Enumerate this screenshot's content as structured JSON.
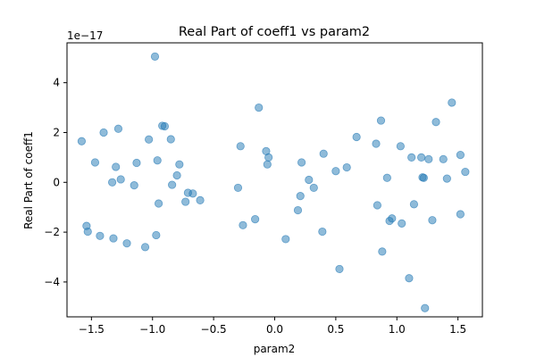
{
  "chart_data": {
    "type": "scatter",
    "title": "Real Part of coeff1 vs param2",
    "xlabel": "param2",
    "ylabel": "Real Part of coeff1",
    "y_offset_label": "1e−17",
    "xlim": [
      -1.7,
      1.7
    ],
    "ylim": [
      -5.4,
      5.6
    ],
    "xticks": [
      -1.5,
      -1.0,
      -0.5,
      0.0,
      0.5,
      1.0,
      1.5
    ],
    "xtick_labels": [
      "−1.5",
      "−1.0",
      "−0.5",
      "0.0",
      "0.5",
      "1.0",
      "1.5"
    ],
    "yticks": [
      -4,
      -2,
      0,
      2,
      4
    ],
    "ytick_labels": [
      "−4",
      "−2",
      "0",
      "2",
      "4"
    ],
    "grid": false,
    "marker_color": "#1f77b4",
    "marker_alpha": 0.5,
    "points": [
      {
        "x": -1.58,
        "y": 1.65
      },
      {
        "x": -1.54,
        "y": -1.75
      },
      {
        "x": -1.53,
        "y": -1.98
      },
      {
        "x": -1.47,
        "y": 0.8
      },
      {
        "x": -1.43,
        "y": -2.15
      },
      {
        "x": -1.4,
        "y": 2.0
      },
      {
        "x": -1.33,
        "y": 0.0
      },
      {
        "x": -1.32,
        "y": -2.25
      },
      {
        "x": -1.3,
        "y": 0.62
      },
      {
        "x": -1.28,
        "y": 2.15
      },
      {
        "x": -1.26,
        "y": 0.12
      },
      {
        "x": -1.21,
        "y": -2.45
      },
      {
        "x": -1.15,
        "y": -0.12
      },
      {
        "x": -1.13,
        "y": 0.78
      },
      {
        "x": -1.06,
        "y": -2.6
      },
      {
        "x": -1.03,
        "y": 1.72
      },
      {
        "x": -0.98,
        "y": 5.05
      },
      {
        "x": -0.97,
        "y": -2.12
      },
      {
        "x": -0.96,
        "y": 0.88
      },
      {
        "x": -0.95,
        "y": -0.85
      },
      {
        "x": -0.92,
        "y": 2.27
      },
      {
        "x": -0.9,
        "y": 2.25
      },
      {
        "x": -0.85,
        "y": 1.73
      },
      {
        "x": -0.84,
        "y": -0.1
      },
      {
        "x": -0.8,
        "y": 0.28
      },
      {
        "x": -0.78,
        "y": 0.72
      },
      {
        "x": -0.73,
        "y": -0.78
      },
      {
        "x": -0.71,
        "y": -0.42
      },
      {
        "x": -0.67,
        "y": -0.45
      },
      {
        "x": -0.61,
        "y": -0.72
      },
      {
        "x": -0.3,
        "y": -0.22
      },
      {
        "x": -0.28,
        "y": 1.45
      },
      {
        "x": -0.26,
        "y": -1.72
      },
      {
        "x": -0.16,
        "y": -1.48
      },
      {
        "x": -0.13,
        "y": 3.0
      },
      {
        "x": -0.07,
        "y": 1.25
      },
      {
        "x": -0.06,
        "y": 0.72
      },
      {
        "x": -0.05,
        "y": 1.0
      },
      {
        "x": 0.09,
        "y": -2.28
      },
      {
        "x": 0.19,
        "y": -1.12
      },
      {
        "x": 0.21,
        "y": -0.55
      },
      {
        "x": 0.22,
        "y": 0.8
      },
      {
        "x": 0.28,
        "y": 0.1
      },
      {
        "x": 0.32,
        "y": -0.22
      },
      {
        "x": 0.39,
        "y": -1.98
      },
      {
        "x": 0.4,
        "y": 1.15
      },
      {
        "x": 0.5,
        "y": 0.45
      },
      {
        "x": 0.53,
        "y": -3.48
      },
      {
        "x": 0.59,
        "y": 0.6
      },
      {
        "x": 0.67,
        "y": 1.82
      },
      {
        "x": 0.83,
        "y": 1.55
      },
      {
        "x": 0.84,
        "y": -0.92
      },
      {
        "x": 0.87,
        "y": 2.48
      },
      {
        "x": 0.88,
        "y": -2.78
      },
      {
        "x": 0.92,
        "y": 0.18
      },
      {
        "x": 0.94,
        "y": -1.55
      },
      {
        "x": 0.96,
        "y": -1.45
      },
      {
        "x": 1.03,
        "y": 1.45
      },
      {
        "x": 1.04,
        "y": -1.65
      },
      {
        "x": 1.1,
        "y": -3.85
      },
      {
        "x": 1.12,
        "y": 1.0
      },
      {
        "x": 1.14,
        "y": -0.88
      },
      {
        "x": 1.2,
        "y": 1.0
      },
      {
        "x": 1.21,
        "y": 0.2
      },
      {
        "x": 1.22,
        "y": 0.18
      },
      {
        "x": 1.23,
        "y": -5.05
      },
      {
        "x": 1.26,
        "y": 0.93
      },
      {
        "x": 1.29,
        "y": -1.52
      },
      {
        "x": 1.32,
        "y": 2.42
      },
      {
        "x": 1.38,
        "y": 0.93
      },
      {
        "x": 1.41,
        "y": 0.15
      },
      {
        "x": 1.45,
        "y": 3.2
      },
      {
        "x": 1.52,
        "y": 1.1
      },
      {
        "x": 1.52,
        "y": -1.28
      },
      {
        "x": 1.56,
        "y": 0.42
      }
    ]
  }
}
